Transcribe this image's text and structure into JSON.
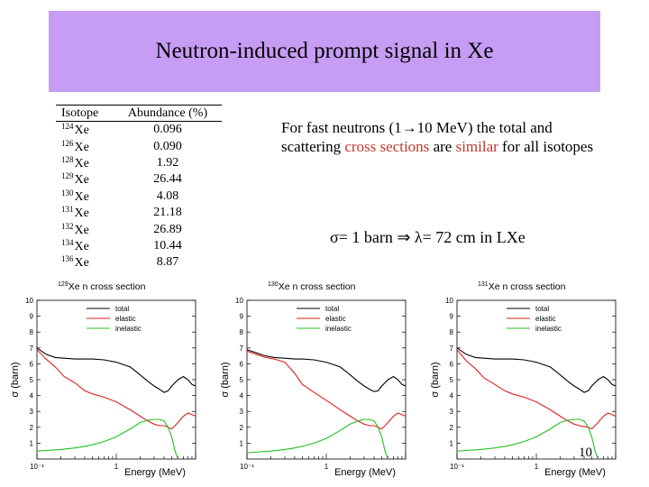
{
  "slide": {
    "title": "Neutron-induced prompt signal in Xe",
    "page_number": "10"
  },
  "table": {
    "header_isotope": "Isotope",
    "header_abundance": "Abundance (%)",
    "rows": [
      {
        "mass": "124",
        "symbol": "Xe",
        "abundance": "0.096"
      },
      {
        "mass": "126",
        "symbol": "Xe",
        "abundance": "0.090"
      },
      {
        "mass": "128",
        "symbol": "Xe",
        "abundance": "1.92"
      },
      {
        "mass": "129",
        "symbol": "Xe",
        "abundance": "26.44"
      },
      {
        "mass": "130",
        "symbol": "Xe",
        "abundance": "4.08"
      },
      {
        "mass": "131",
        "symbol": "Xe",
        "abundance": "21.18"
      },
      {
        "mass": "132",
        "symbol": "Xe",
        "abundance": "26.89"
      },
      {
        "mass": "134",
        "symbol": "Xe",
        "abundance": "10.44"
      },
      {
        "mass": "136",
        "symbol": "Xe",
        "abundance": "8.87"
      }
    ]
  },
  "description": {
    "part1": "For fast neutrons (1",
    "arrow": "→",
    "part2": "10 MeV) the total and scattering ",
    "highlight1": "cross sections",
    "part3": " are ",
    "highlight2": "similar",
    "part4": " for all isotopes",
    "formula": "σ= 1 barn ⇒ λ= 72 cm in LXe"
  },
  "colors": {
    "title_bg": "#c79cf4",
    "highlight": "#c0392b",
    "total": "#000000",
    "elastic": "#e02020",
    "inelastic": "#22c022"
  },
  "chart_data": [
    {
      "type": "line",
      "title_mass": "129",
      "title_text": "Xe n cross section",
      "xlabel": "Energy (MeV)",
      "ylabel": "σ (barn)",
      "xscale": "log",
      "xlim": [
        0.1,
        10
      ],
      "ylim": [
        0,
        10
      ],
      "yticks": [
        "1",
        "2",
        "3",
        "4",
        "5",
        "6",
        "7",
        "8",
        "9",
        "10"
      ],
      "xtick_labels": [
        {
          "value": 0.1,
          "text": "10⁻¹"
        },
        {
          "value": 1,
          "text": "1"
        }
      ],
      "legend_position": "top-center",
      "series": [
        {
          "name": "total",
          "color": "#000000",
          "x": [
            0.1,
            0.13,
            0.17,
            0.22,
            0.3,
            0.4,
            0.5,
            0.7,
            1,
            1.5,
            2,
            2.5,
            3,
            3.5,
            4,
            4.5,
            5,
            6,
            7,
            8,
            9,
            10
          ],
          "y": [
            7.0,
            6.6,
            6.4,
            6.35,
            6.3,
            6.3,
            6.3,
            6.25,
            6.1,
            5.8,
            5.3,
            4.9,
            4.6,
            4.4,
            4.2,
            4.3,
            4.6,
            5.0,
            5.2,
            5.0,
            4.7,
            4.6
          ]
        },
        {
          "name": "elastic",
          "color": "#e02020",
          "x": [
            0.1,
            0.13,
            0.17,
            0.22,
            0.3,
            0.4,
            0.5,
            0.7,
            1,
            1.5,
            2,
            2.5,
            3,
            3.5,
            4,
            4.5,
            5,
            6,
            7,
            8,
            9,
            10
          ],
          "y": [
            6.9,
            6.3,
            5.8,
            5.2,
            4.8,
            4.3,
            4.1,
            3.9,
            3.6,
            3.1,
            2.7,
            2.4,
            2.2,
            2.1,
            2.1,
            2.0,
            1.9,
            2.3,
            2.7,
            2.9,
            2.8,
            2.7
          ]
        },
        {
          "name": "inelastic",
          "color": "#22c022",
          "x": [
            0.1,
            0.2,
            0.3,
            0.4,
            0.5,
            0.7,
            1,
            1.5,
            2,
            2.5,
            3,
            3.5,
            4,
            4.5,
            5,
            5.5,
            6
          ],
          "y": [
            0.5,
            0.6,
            0.7,
            0.8,
            0.9,
            1.1,
            1.4,
            1.9,
            2.3,
            2.45,
            2.5,
            2.5,
            2.4,
            2.0,
            1.4,
            0.5,
            0.0
          ]
        }
      ]
    },
    {
      "type": "line",
      "title_mass": "130",
      "title_text": "Xe n cross section",
      "xlabel": "Energy (MeV)",
      "ylabel": "σ (barn)",
      "xscale": "log",
      "xlim": [
        0.1,
        10
      ],
      "ylim": [
        0,
        10
      ],
      "yticks": [
        "1",
        "2",
        "3",
        "4",
        "5",
        "6",
        "7",
        "8",
        "9",
        "10"
      ],
      "xtick_labels": [
        {
          "value": 0.1,
          "text": "10⁻¹"
        },
        {
          "value": 1,
          "text": "1"
        }
      ],
      "legend_position": "top-center",
      "series": [
        {
          "name": "total",
          "color": "#000000",
          "x": [
            0.1,
            0.13,
            0.17,
            0.22,
            0.3,
            0.4,
            0.5,
            0.7,
            1,
            1.5,
            2,
            2.5,
            3,
            3.5,
            4,
            4.5,
            5,
            6,
            7,
            8,
            9,
            10
          ],
          "y": [
            6.9,
            6.7,
            6.5,
            6.4,
            6.35,
            6.3,
            6.3,
            6.25,
            6.1,
            5.8,
            5.3,
            4.9,
            4.6,
            4.4,
            4.25,
            4.3,
            4.6,
            5.0,
            5.2,
            5.0,
            4.7,
            4.6
          ]
        },
        {
          "name": "elastic",
          "color": "#e02020",
          "x": [
            0.1,
            0.13,
            0.17,
            0.22,
            0.3,
            0.4,
            0.5,
            0.7,
            1,
            1.5,
            2,
            2.5,
            3,
            3.5,
            4,
            4.5,
            5,
            6,
            7,
            8,
            9,
            10
          ],
          "y": [
            6.8,
            6.6,
            6.4,
            6.3,
            6.1,
            5.4,
            4.7,
            4.2,
            3.7,
            3.1,
            2.7,
            2.4,
            2.2,
            2.1,
            2.1,
            2.0,
            1.9,
            2.3,
            2.7,
            2.9,
            2.8,
            2.7
          ]
        },
        {
          "name": "inelastic",
          "color": "#22c022",
          "x": [
            0.1,
            0.2,
            0.3,
            0.4,
            0.5,
            0.7,
            1,
            1.5,
            2,
            2.5,
            3,
            3.5,
            4,
            4.5,
            5,
            5.5,
            6
          ],
          "y": [
            0.4,
            0.5,
            0.6,
            0.7,
            0.8,
            1.0,
            1.3,
            1.8,
            2.2,
            2.4,
            2.5,
            2.5,
            2.4,
            2.0,
            1.4,
            0.5,
            0.0
          ]
        }
      ]
    },
    {
      "type": "line",
      "title_mass": "131",
      "title_text": "Xe n cross section",
      "xlabel": "Energy (MeV)",
      "ylabel": "σ (barn)",
      "xscale": "log",
      "xlim": [
        0.1,
        10
      ],
      "ylim": [
        0,
        10
      ],
      "yticks": [
        "1",
        "2",
        "3",
        "4",
        "5",
        "6",
        "7",
        "8",
        "9",
        "10"
      ],
      "xtick_labels": [
        {
          "value": 0.1,
          "text": "10⁻¹"
        },
        {
          "value": 1,
          "text": "1"
        }
      ],
      "legend_position": "top-center",
      "series": [
        {
          "name": "total",
          "color": "#000000",
          "x": [
            0.1,
            0.13,
            0.17,
            0.22,
            0.3,
            0.4,
            0.5,
            0.7,
            1,
            1.5,
            2,
            2.5,
            3,
            3.5,
            4,
            4.5,
            5,
            6,
            7,
            8,
            9,
            10
          ],
          "y": [
            7.0,
            6.6,
            6.4,
            6.35,
            6.3,
            6.3,
            6.3,
            6.25,
            6.1,
            5.8,
            5.3,
            4.9,
            4.6,
            4.4,
            4.2,
            4.3,
            4.6,
            5.0,
            5.2,
            5.0,
            4.7,
            4.6
          ]
        },
        {
          "name": "elastic",
          "color": "#e02020",
          "x": [
            0.1,
            0.13,
            0.17,
            0.22,
            0.3,
            0.4,
            0.5,
            0.7,
            1,
            1.5,
            2,
            2.5,
            3,
            3.5,
            4,
            4.5,
            5,
            6,
            7,
            8,
            9,
            10
          ],
          "y": [
            6.9,
            6.2,
            5.7,
            5.1,
            4.7,
            4.3,
            4.1,
            3.9,
            3.6,
            3.1,
            2.7,
            2.4,
            2.2,
            2.1,
            2.05,
            2.0,
            1.9,
            2.3,
            2.7,
            2.9,
            2.8,
            2.7
          ]
        },
        {
          "name": "inelastic",
          "color": "#22c022",
          "x": [
            0.1,
            0.2,
            0.3,
            0.4,
            0.5,
            0.7,
            1,
            1.5,
            2,
            2.5,
            3,
            3.5,
            4,
            4.5,
            5,
            5.5,
            6
          ],
          "y": [
            0.5,
            0.6,
            0.7,
            0.8,
            0.9,
            1.1,
            1.4,
            1.9,
            2.3,
            2.45,
            2.5,
            2.5,
            2.4,
            2.0,
            1.4,
            0.5,
            0.0
          ]
        }
      ]
    }
  ]
}
